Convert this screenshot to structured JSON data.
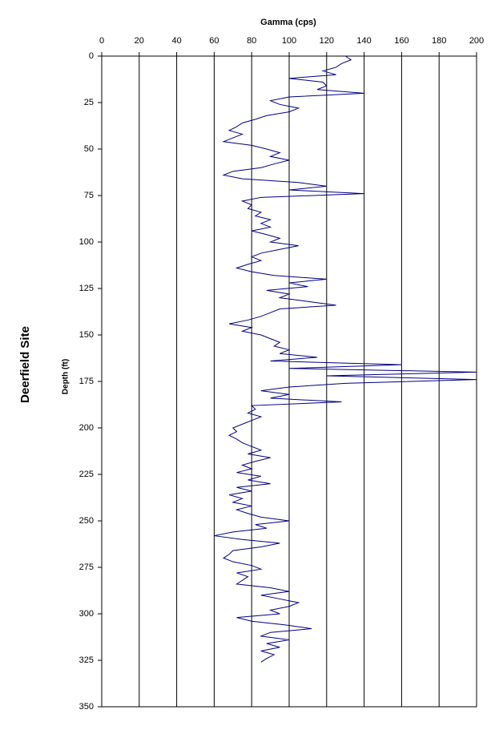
{
  "chart_data": {
    "type": "line",
    "title": "Gamma (cps)",
    "side_title": "Deerfield Site",
    "y_label": "Depth (ft)",
    "xlim": [
      0,
      200
    ],
    "xticks": [
      0,
      20,
      40,
      60,
      80,
      100,
      120,
      140,
      160,
      180,
      200
    ],
    "ylim": [
      0,
      350
    ],
    "y_inverted": true,
    "yticks": [
      0,
      25,
      50,
      75,
      100,
      125,
      150,
      175,
      200,
      225,
      250,
      275,
      300,
      325,
      350
    ],
    "grid": true,
    "color": "#000080",
    "y": [
      0,
      2,
      4,
      6,
      8,
      10,
      12,
      14,
      16,
      18,
      20,
      22,
      24,
      26,
      28,
      30,
      32,
      34,
      36,
      38,
      40,
      42,
      44,
      46,
      48,
      50,
      52,
      54,
      56,
      58,
      60,
      62,
      64,
      66,
      68,
      70,
      72,
      74,
      76,
      78,
      80,
      82,
      84,
      86,
      88,
      90,
      92,
      94,
      96,
      98,
      100,
      102,
      104,
      106,
      108,
      110,
      112,
      114,
      116,
      118,
      120,
      122,
      124,
      126,
      128,
      130,
      132,
      134,
      136,
      138,
      140,
      142,
      144,
      146,
      148,
      150,
      152,
      154,
      156,
      158,
      160,
      162,
      164,
      166,
      168,
      170,
      172,
      174,
      176,
      178,
      180,
      182,
      184,
      186,
      188,
      190,
      192,
      194,
      196,
      198,
      200,
      202,
      204,
      206,
      208,
      210,
      212,
      214,
      216,
      218,
      220,
      222,
      224,
      226,
      228,
      230,
      232,
      234,
      236,
      238,
      240,
      242,
      244,
      246,
      248,
      250,
      252,
      254,
      256,
      258,
      260,
      262,
      264,
      266,
      268,
      270,
      272,
      274,
      276,
      278,
      280,
      282,
      284,
      286,
      288,
      290,
      292,
      294,
      296,
      298,
      300,
      302,
      304,
      306,
      308,
      310,
      312,
      314,
      316,
      318,
      320,
      322,
      324,
      326
    ],
    "values": [
      130,
      133,
      128,
      125,
      118,
      125,
      100,
      118,
      120,
      115,
      140,
      100,
      90,
      95,
      105,
      100,
      88,
      82,
      75,
      72,
      68,
      75,
      70,
      65,
      80,
      88,
      95,
      90,
      100,
      92,
      85,
      70,
      65,
      75,
      105,
      120,
      100,
      140,
      85,
      75,
      80,
      78,
      85,
      82,
      90,
      85,
      90,
      80,
      88,
      95,
      90,
      105,
      95,
      85,
      80,
      85,
      78,
      72,
      80,
      92,
      120,
      100,
      110,
      88,
      100,
      95,
      110,
      125,
      95,
      90,
      85,
      78,
      68,
      80,
      75,
      85,
      90,
      95,
      92,
      100,
      95,
      115,
      90,
      160,
      100,
      200,
      120,
      200,
      130,
      100,
      85,
      100,
      90,
      128,
      80,
      82,
      78,
      85,
      80,
      75,
      70,
      72,
      68,
      72,
      75,
      80,
      85,
      78,
      90,
      82,
      75,
      80,
      72,
      85,
      78,
      90,
      72,
      80,
      68,
      75,
      70,
      80,
      72,
      78,
      85,
      100,
      82,
      88,
      70,
      60,
      75,
      95,
      85,
      70,
      68,
      65,
      70,
      80,
      85,
      72,
      78,
      75,
      72,
      90,
      100,
      85,
      95,
      105,
      100,
      90,
      95,
      72,
      80,
      98,
      112,
      90,
      85,
      100,
      88,
      95,
      85,
      92,
      88,
      85
    ]
  }
}
